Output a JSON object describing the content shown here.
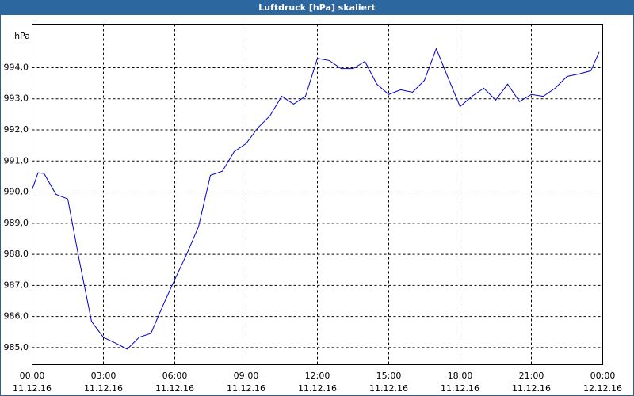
{
  "chart_data": {
    "type": "line",
    "title": "Luftdruck [hPa] skaliert",
    "y_unit": "hPa",
    "x": [
      0,
      0.25,
      0.5,
      1,
      1.5,
      2,
      2.5,
      3,
      3.5,
      4,
      4.5,
      5,
      5.5,
      6,
      6.5,
      7,
      7.5,
      8,
      8.5,
      9,
      9.5,
      10,
      10.5,
      11,
      11.5,
      12,
      12.5,
      13,
      13.5,
      14,
      14.5,
      15,
      15.5,
      16,
      16.5,
      17,
      17.5,
      18,
      18.5,
      19,
      19.5,
      20,
      20.5,
      21,
      21.5,
      22,
      22.5,
      23,
      23.5,
      23.85
    ],
    "series": [
      {
        "name": "Luftdruck",
        "color": "#0000cc",
        "values": [
          990.08,
          990.62,
          990.6,
          989.93,
          989.78,
          987.75,
          985.84,
          985.33,
          985.15,
          984.95,
          985.33,
          985.46,
          986.35,
          987.19,
          988.0,
          988.89,
          990.54,
          990.67,
          991.3,
          991.56,
          992.07,
          992.45,
          993.08,
          992.83,
          993.08,
          994.3,
          994.23,
          993.97,
          993.97,
          994.2,
          993.47,
          993.14,
          993.29,
          993.21,
          993.59,
          994.61,
          993.67,
          992.75,
          993.08,
          993.34,
          992.96,
          993.47,
          992.91,
          993.14,
          993.08,
          993.34,
          993.72,
          993.8,
          993.9,
          994.5
        ]
      }
    ],
    "xlim": [
      0,
      24
    ],
    "xticks": [
      {
        "value": 0,
        "label": "00:00"
      },
      {
        "value": 3,
        "label": "03:00"
      },
      {
        "value": 6,
        "label": "06:00"
      },
      {
        "value": 9,
        "label": "09:00"
      },
      {
        "value": 12,
        "label": "12:00"
      },
      {
        "value": 15,
        "label": "15:00"
      },
      {
        "value": 18,
        "label": "18:00"
      },
      {
        "value": 21,
        "label": "21:00"
      },
      {
        "value": 24,
        "label": "00:00"
      }
    ],
    "xtick_dates": [
      "11.12.16",
      "11.12.16",
      "11.12.16",
      "11.12.16",
      "11.12.16",
      "11.12.16",
      "11.12.16",
      "11.12.16",
      "12.12.16"
    ],
    "ylim": [
      984.45,
      995.4
    ],
    "yticks": [
      {
        "value": 985,
        "label": "985,0"
      },
      {
        "value": 986,
        "label": "986,0"
      },
      {
        "value": 987,
        "label": "987,0"
      },
      {
        "value": 988,
        "label": "988,0"
      },
      {
        "value": 989,
        "label": "989,0"
      },
      {
        "value": 990,
        "label": "990,0"
      },
      {
        "value": 991,
        "label": "991,0"
      },
      {
        "value": 992,
        "label": "992,0"
      },
      {
        "value": 993,
        "label": "993,0"
      },
      {
        "value": 994,
        "label": "994,0"
      }
    ],
    "grid": true
  }
}
